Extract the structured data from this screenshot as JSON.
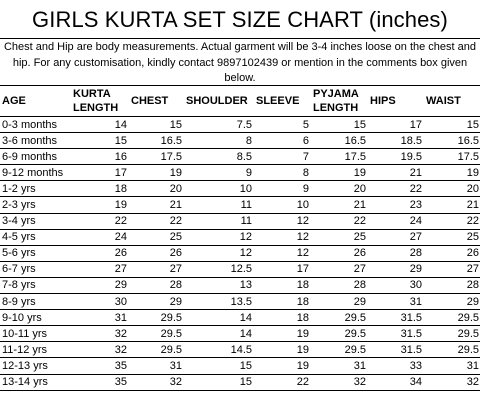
{
  "title": "GIRLS KURTA SET SIZE CHART (inches)",
  "note": "Chest and Hip are body measurements. Actual garment will be 3-4 inches loose on the chest and hip. For any customisation, kindly contact 9897102439 or mention in the comments box given below.",
  "table": {
    "headers": [
      "AGE",
      "KURTA LENGTH",
      "CHEST",
      "SHOULDER",
      "SLEEVE",
      "PYJAMA LENGTH",
      "HIPS",
      "WAIST"
    ],
    "rows": [
      [
        "0-3 months",
        "14",
        "15",
        "7.5",
        "5",
        "15",
        "17",
        "15"
      ],
      [
        "3-6 months",
        "15",
        "16.5",
        "8",
        "6",
        "16.5",
        "18.5",
        "16.5"
      ],
      [
        "6-9 months",
        "16",
        "17.5",
        "8.5",
        "7",
        "17.5",
        "19.5",
        "17.5"
      ],
      [
        "9-12 months",
        "17",
        "19",
        "9",
        "8",
        "19",
        "21",
        "19"
      ],
      [
        "1-2 yrs",
        "18",
        "20",
        "10",
        "9",
        "20",
        "22",
        "20"
      ],
      [
        "2-3 yrs",
        "19",
        "21",
        "11",
        "10",
        "21",
        "23",
        "21"
      ],
      [
        "3-4 yrs",
        "22",
        "22",
        "11",
        "12",
        "22",
        "24",
        "22"
      ],
      [
        "4-5 yrs",
        "24",
        "25",
        "12",
        "12",
        "25",
        "27",
        "25"
      ],
      [
        "5-6 yrs",
        "26",
        "26",
        "12",
        "12",
        "26",
        "28",
        "26"
      ],
      [
        "6-7 yrs",
        "27",
        "27",
        "12.5",
        "17",
        "27",
        "29",
        "27"
      ],
      [
        "7-8 yrs",
        "29",
        "28",
        "13",
        "18",
        "28",
        "30",
        "28"
      ],
      [
        "8-9 yrs",
        "30",
        "29",
        "13.5",
        "18",
        "29",
        "31",
        "29"
      ],
      [
        "9-10 yrs",
        "31",
        "29.5",
        "14",
        "18",
        "29.5",
        "31.5",
        "29.5"
      ],
      [
        "10-11 yrs",
        "32",
        "29.5",
        "14",
        "19",
        "29.5",
        "31.5",
        "29.5"
      ],
      [
        "11-12 yrs",
        "32",
        "29.5",
        "14.5",
        "19",
        "29.5",
        "31.5",
        "29.5"
      ],
      [
        "12-13 yrs",
        "35",
        "31",
        "15",
        "19",
        "31",
        "33",
        "31"
      ],
      [
        "13-14 yrs",
        "35",
        "32",
        "15",
        "22",
        "32",
        "34",
        "32"
      ]
    ]
  }
}
